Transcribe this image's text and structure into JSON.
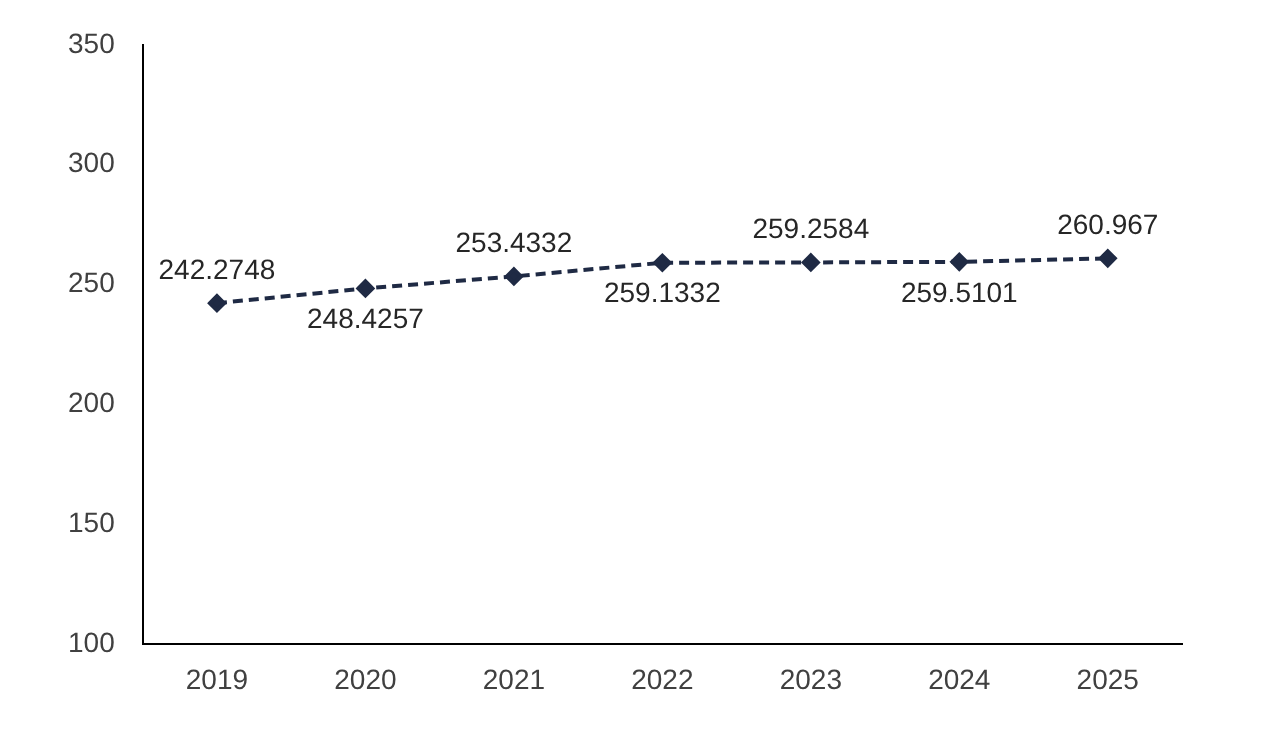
{
  "chart_data": {
    "type": "line",
    "categories": [
      "2019",
      "2020",
      "2021",
      "2022",
      "2023",
      "2024",
      "2025"
    ],
    "series": [
      {
        "color": "#1f2a44",
        "values": [
          242.2748,
          248.4257,
          253.4332,
          259.1332,
          259.2584,
          259.5101,
          260.967
        ]
      }
    ],
    "ylim": [
      100,
      350
    ],
    "yticks": [
      100,
      150,
      200,
      250,
      300,
      350
    ],
    "grid": false,
    "legend": false,
    "marker": "diamond",
    "line_style": "dashed",
    "data_labels": true
  }
}
